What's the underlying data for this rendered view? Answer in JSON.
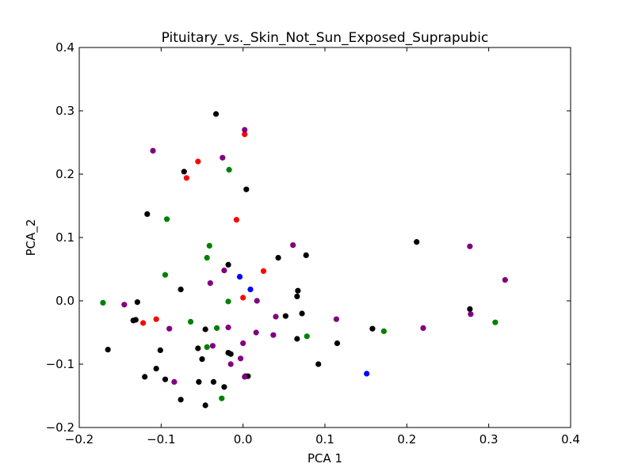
{
  "chart_data": {
    "type": "scatter",
    "title": "Pituitary_vs._Skin_Not_Sun_Exposed_Suprapubic",
    "xlabel": "PCA 1",
    "ylabel": "PCA_2",
    "xlim": [
      -0.2,
      0.4
    ],
    "ylim": [
      -0.2,
      0.4
    ],
    "xticks": [
      "−0.2",
      "−0.1",
      "0.0",
      "0.1",
      "0.2",
      "0.3",
      "0.4"
    ],
    "yticks": [
      "−0.2",
      "−0.1",
      "0.0",
      "0.1",
      "0.2",
      "0.3",
      "0.4"
    ],
    "grid": false,
    "legend": false,
    "series": [
      {
        "color": "#000000",
        "points": [
          [
            -0.033,
            0.295
          ],
          [
            -0.072,
            0.204
          ],
          [
            0.004,
            0.176
          ],
          [
            -0.117,
            0.137
          ],
          [
            0.212,
            0.093
          ],
          [
            0.043,
            0.068
          ],
          [
            0.077,
            0.072
          ],
          [
            -0.018,
            0.057
          ],
          [
            -0.076,
            0.018
          ],
          [
            0.067,
            0.016
          ],
          [
            0.066,
            0.007
          ],
          [
            -0.129,
            -0.002
          ],
          [
            0.277,
            -0.013
          ],
          [
            0.072,
            -0.02
          ],
          [
            0.052,
            -0.024
          ],
          [
            -0.134,
            -0.031
          ],
          [
            -0.131,
            -0.03
          ],
          [
            0.158,
            -0.044
          ],
          [
            -0.046,
            -0.045
          ],
          [
            -0.055,
            -0.075
          ],
          [
            0.066,
            -0.06
          ],
          [
            0.115,
            -0.067
          ],
          [
            -0.165,
            -0.077
          ],
          [
            -0.101,
            -0.078
          ],
          [
            -0.018,
            -0.082
          ],
          [
            -0.015,
            -0.084
          ],
          [
            -0.05,
            -0.092
          ],
          [
            0.092,
            -0.1
          ],
          [
            -0.106,
            -0.107
          ],
          [
            -0.12,
            -0.12
          ],
          [
            0.003,
            -0.119
          ],
          [
            0.006,
            -0.119
          ],
          [
            -0.095,
            -0.124
          ],
          [
            -0.054,
            -0.128
          ],
          [
            -0.036,
            -0.128
          ],
          [
            -0.023,
            -0.136
          ],
          [
            -0.076,
            -0.156
          ],
          [
            -0.046,
            -0.165
          ]
        ]
      },
      {
        "color": "#ff0000",
        "points": [
          [
            0.002,
            0.263
          ],
          [
            -0.055,
            0.22
          ],
          [
            -0.069,
            0.194
          ],
          [
            -0.008,
            0.128
          ],
          [
            0.025,
            0.047
          ],
          [
            0.0,
            0.005
          ],
          [
            -0.106,
            -0.029
          ],
          [
            -0.122,
            -0.035
          ]
        ]
      },
      {
        "color": "#0000ff",
        "points": [
          [
            -0.004,
            0.038
          ],
          [
            0.009,
            0.018
          ],
          [
            0.151,
            -0.115
          ]
        ]
      },
      {
        "color": "#008000",
        "points": [
          [
            -0.017,
            0.207
          ],
          [
            -0.093,
            0.129
          ],
          [
            -0.041,
            0.087
          ],
          [
            -0.044,
            0.068
          ],
          [
            -0.095,
            0.041
          ],
          [
            -0.018,
            -0.001
          ],
          [
            -0.171,
            -0.003
          ],
          [
            -0.064,
            -0.033
          ],
          [
            0.308,
            -0.034
          ],
          [
            -0.032,
            -0.043
          ],
          [
            0.172,
            -0.048
          ],
          [
            0.078,
            -0.056
          ],
          [
            -0.044,
            -0.073
          ],
          [
            -0.026,
            -0.154
          ]
        ]
      },
      {
        "color": "#800080",
        "points": [
          [
            0.002,
            0.27
          ],
          [
            -0.11,
            0.237
          ],
          [
            -0.025,
            0.226
          ],
          [
            0.061,
            0.088
          ],
          [
            0.277,
            0.086
          ],
          [
            -0.023,
            0.048
          ],
          [
            0.32,
            0.033
          ],
          [
            -0.04,
            0.028
          ],
          [
            0.017,
            0.0
          ],
          [
            -0.145,
            -0.006
          ],
          [
            0.278,
            -0.021
          ],
          [
            0.04,
            -0.025
          ],
          [
            0.114,
            -0.029
          ],
          [
            -0.018,
            -0.042
          ],
          [
            -0.09,
            -0.044
          ],
          [
            0.22,
            -0.043
          ],
          [
            0.016,
            -0.05
          ],
          [
            0.037,
            -0.054
          ],
          [
            -0.037,
            -0.071
          ],
          [
            0.0,
            -0.067
          ],
          [
            -0.015,
            -0.1
          ],
          [
            -0.003,
            -0.091
          ],
          [
            0.002,
            -0.12
          ],
          [
            -0.084,
            -0.128
          ]
        ]
      }
    ]
  }
}
